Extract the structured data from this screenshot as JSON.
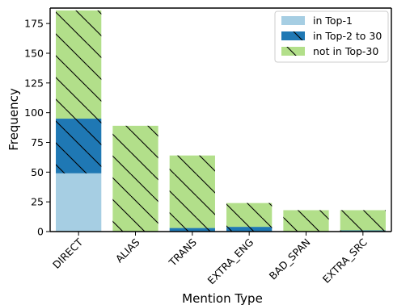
{
  "chart_data": {
    "type": "bar",
    "stacked": true,
    "xlabel": "Mention Type",
    "ylabel": "Frequency",
    "categories": [
      "DIRECT",
      "ALIAS",
      "TRANS",
      "EXTRA_ENG",
      "BAD_SPAN",
      "EXTRA_SRC"
    ],
    "series": [
      {
        "name": "in Top-1",
        "values": [
          49,
          0,
          0,
          0,
          0,
          0
        ],
        "color": "#a6cee3",
        "hatch": "none"
      },
      {
        "name": "in Top-2 to 30",
        "values": [
          46,
          0,
          3,
          4,
          0,
          1
        ],
        "color": "#1f78b4",
        "hatch": "diagonal"
      },
      {
        "name": "not in Top-30",
        "values": [
          91,
          89,
          61,
          20,
          18,
          17
        ],
        "color": "#b2df8a",
        "hatch": "diagonal"
      }
    ],
    "ylim": [
      0,
      188
    ],
    "yticks": [
      0,
      25,
      50,
      75,
      100,
      125,
      150,
      175
    ],
    "grid": false,
    "legend_position": "top-right"
  }
}
